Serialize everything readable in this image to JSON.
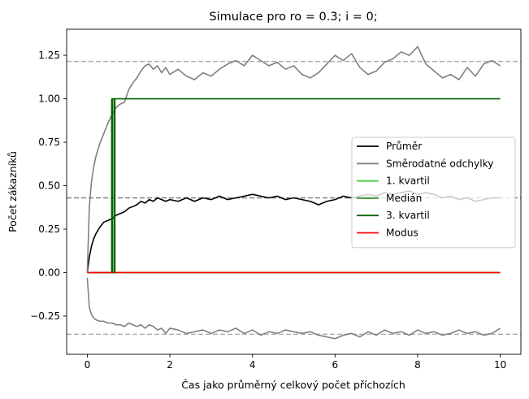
{
  "chart_data": {
    "type": "line",
    "title": "Simulace pro ro = 0.3; i = 0;",
    "xlabel": "Čas jako průměrný celkový počet příchozích",
    "ylabel": "Počet zákazníků",
    "xlim": [
      -0.5,
      10.5
    ],
    "ylim": [
      -0.47,
      1.4
    ],
    "xticks": [
      0,
      2,
      4,
      6,
      8,
      10
    ],
    "xtick_labels": [
      "0",
      "2",
      "4",
      "6",
      "8",
      "10"
    ],
    "yticks": [
      -0.25,
      0.0,
      0.25,
      0.5,
      0.75,
      1.0,
      1.25
    ],
    "ytick_labels": [
      "−0.25",
      "0.00",
      "0.25",
      "0.50",
      "0.75",
      "1.00",
      "1.25"
    ],
    "grid": false,
    "legend_position": "center-right",
    "series": [
      {
        "name": "Průměr",
        "color": "#000000",
        "x": [
          0,
          0.05,
          0.1,
          0.15,
          0.2,
          0.3,
          0.4,
          0.5,
          0.6,
          0.7,
          0.8,
          0.9,
          1.0,
          1.1,
          1.2,
          1.3,
          1.4,
          1.5,
          1.6,
          1.7,
          1.8,
          1.9,
          2.0,
          2.2,
          2.4,
          2.6,
          2.8,
          3.0,
          3.2,
          3.4,
          3.6,
          3.8,
          4.0,
          4.2,
          4.4,
          4.6,
          4.8,
          5.0,
          5.2,
          5.4,
          5.6,
          5.8,
          6.0,
          6.2,
          6.4,
          6.6,
          6.8,
          7.0,
          7.2,
          7.4,
          7.6,
          7.8,
          8.0,
          8.2,
          8.4,
          8.6,
          8.8,
          9.0,
          9.2,
          9.4,
          9.6,
          9.8,
          10.0
        ],
        "y": [
          0.0,
          0.09,
          0.15,
          0.19,
          0.22,
          0.26,
          0.29,
          0.3,
          0.31,
          0.33,
          0.34,
          0.35,
          0.37,
          0.38,
          0.39,
          0.41,
          0.4,
          0.42,
          0.41,
          0.43,
          0.42,
          0.41,
          0.42,
          0.41,
          0.43,
          0.41,
          0.43,
          0.42,
          0.44,
          0.42,
          0.43,
          0.44,
          0.45,
          0.44,
          0.43,
          0.44,
          0.42,
          0.43,
          0.42,
          0.41,
          0.39,
          0.41,
          0.42,
          0.44,
          0.43,
          0.44,
          0.45,
          0.44,
          0.46,
          0.45,
          0.46,
          0.47,
          0.45,
          0.46,
          0.45,
          0.43,
          0.44,
          0.42,
          0.43,
          0.41,
          0.42,
          0.43,
          0.43
        ]
      },
      {
        "name": "Směrodatné odchylky",
        "color": "#808080",
        "x": [
          0,
          0.05,
          0.1,
          0.15,
          0.2,
          0.3,
          0.4,
          0.5,
          0.6,
          0.7,
          0.8,
          0.9,
          1.0,
          1.1,
          1.2,
          1.3,
          1.4,
          1.5,
          1.6,
          1.7,
          1.8,
          1.9,
          2.0,
          2.2,
          2.4,
          2.6,
          2.8,
          3.0,
          3.2,
          3.4,
          3.6,
          3.8,
          4.0,
          4.2,
          4.4,
          4.6,
          4.8,
          5.0,
          5.2,
          5.4,
          5.6,
          5.8,
          6.0,
          6.2,
          6.4,
          6.6,
          6.8,
          7.0,
          7.2,
          7.4,
          7.6,
          7.8,
          8.0,
          8.2,
          8.4,
          8.6,
          8.8,
          9.0,
          9.2,
          9.4,
          9.6,
          9.8,
          10.0
        ],
        "y": [
          0.0,
          0.38,
          0.52,
          0.6,
          0.66,
          0.74,
          0.8,
          0.86,
          0.91,
          0.95,
          0.97,
          0.98,
          1.05,
          1.09,
          1.12,
          1.16,
          1.19,
          1.2,
          1.17,
          1.19,
          1.15,
          1.18,
          1.14,
          1.17,
          1.13,
          1.11,
          1.15,
          1.13,
          1.17,
          1.2,
          1.22,
          1.19,
          1.25,
          1.22,
          1.19,
          1.21,
          1.17,
          1.19,
          1.14,
          1.12,
          1.15,
          1.2,
          1.25,
          1.22,
          1.26,
          1.18,
          1.14,
          1.16,
          1.21,
          1.23,
          1.27,
          1.25,
          1.3,
          1.2,
          1.16,
          1.12,
          1.14,
          1.11,
          1.18,
          1.13,
          1.2,
          1.22,
          1.19
        ]
      },
      {
        "name": "",
        "color": "#808080",
        "x": [
          0,
          0.05,
          0.1,
          0.15,
          0.2,
          0.3,
          0.4,
          0.5,
          0.6,
          0.7,
          0.8,
          0.9,
          1.0,
          1.1,
          1.2,
          1.3,
          1.4,
          1.5,
          1.6,
          1.7,
          1.8,
          1.9,
          2.0,
          2.2,
          2.4,
          2.6,
          2.8,
          3.0,
          3.2,
          3.4,
          3.6,
          3.8,
          4.0,
          4.2,
          4.4,
          4.6,
          4.8,
          5.0,
          5.2,
          5.4,
          5.6,
          5.8,
          6.0,
          6.2,
          6.4,
          6.6,
          6.8,
          7.0,
          7.2,
          7.4,
          7.6,
          7.8,
          8.0,
          8.2,
          8.4,
          8.6,
          8.8,
          9.0,
          9.2,
          9.4,
          9.6,
          9.8,
          10.0
        ],
        "y": [
          -0.03,
          -0.2,
          -0.24,
          -0.26,
          -0.27,
          -0.28,
          -0.28,
          -0.29,
          -0.29,
          -0.3,
          -0.3,
          -0.31,
          -0.29,
          -0.3,
          -0.31,
          -0.3,
          -0.32,
          -0.3,
          -0.31,
          -0.33,
          -0.32,
          -0.35,
          -0.32,
          -0.33,
          -0.35,
          -0.34,
          -0.33,
          -0.35,
          -0.33,
          -0.34,
          -0.32,
          -0.35,
          -0.33,
          -0.36,
          -0.34,
          -0.35,
          -0.33,
          -0.34,
          -0.35,
          -0.34,
          -0.36,
          -0.37,
          -0.38,
          -0.36,
          -0.35,
          -0.37,
          -0.34,
          -0.36,
          -0.33,
          -0.35,
          -0.34,
          -0.36,
          -0.33,
          -0.35,
          -0.34,
          -0.36,
          -0.35,
          -0.33,
          -0.35,
          -0.34,
          -0.36,
          -0.35,
          -0.32
        ]
      },
      {
        "name": "1. kvartil",
        "color": "#32cd32",
        "x": [
          0,
          10
        ],
        "y": [
          0,
          0
        ]
      },
      {
        "name": "Medián",
        "color": "#228b22",
        "x": [
          0,
          10
        ],
        "y": [
          0,
          0
        ]
      },
      {
        "name": "3. kvartil",
        "color": "#006400",
        "x": [
          0,
          0.6,
          0.6,
          0.66,
          0.66,
          10
        ],
        "y": [
          0,
          0,
          1,
          1,
          1,
          1
        ]
      },
      {
        "name": "Modus",
        "color": "#ff0000",
        "x": [
          0,
          10
        ],
        "y": [
          0,
          0
        ]
      }
    ],
    "vertical_segments": [
      {
        "x": 0.6,
        "y0": 0,
        "y1": 1,
        "color": "#006400"
      },
      {
        "x": 0.66,
        "y0": 0,
        "y1": 1,
        "color": "#006400"
      }
    ],
    "reference_lines": [
      {
        "y": 1.215,
        "color": "#b0b0b0",
        "style": "dashed"
      },
      {
        "y": 0.43,
        "color": "#808080",
        "style": "dashed"
      },
      {
        "y": -0.355,
        "color": "#b0b0b0",
        "style": "dashed"
      }
    ]
  }
}
